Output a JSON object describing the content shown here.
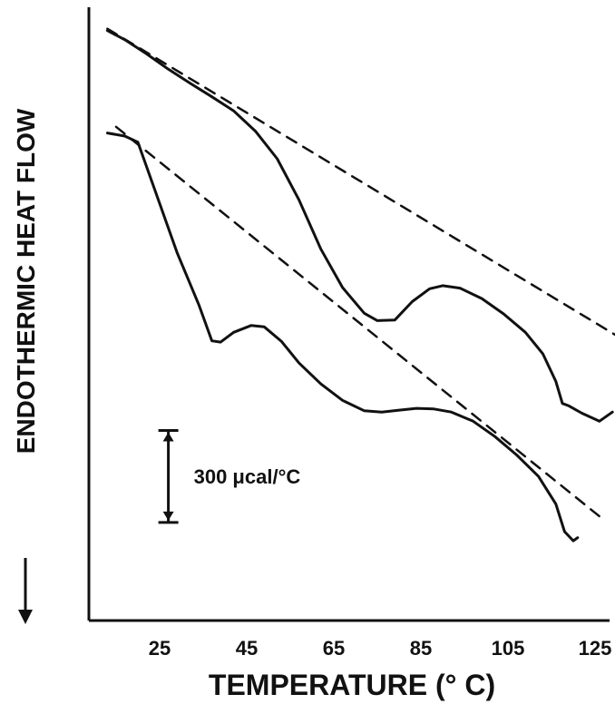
{
  "chart_data": {
    "type": "line",
    "title": "",
    "xlabel": "TEMPERATURE (° C)",
    "ylabel": "ENDOTHERMIC HEAT FLOW",
    "ylabel_arrow": "↓",
    "xlim": [
      13,
      131
    ],
    "x_ticks": [
      25,
      45,
      65,
      85,
      105,
      125
    ],
    "x_tick_labels": [
      "25",
      "45",
      "65",
      "85",
      "105",
      "125"
    ],
    "y_units": "relative heat flow (μcal/°C)",
    "ylim": [
      0,
      2000
    ],
    "grid": false,
    "scale_bar": {
      "label": "300 μcal/°C",
      "value": 300,
      "x": 27,
      "y_top": 620,
      "y_bottom": 320
    },
    "series": [
      {
        "style": "solid",
        "points": [
          [
            13,
            1924
          ],
          [
            17,
            1894
          ],
          [
            22,
            1848
          ],
          [
            27,
            1798
          ],
          [
            32,
            1752
          ],
          [
            37,
            1708
          ],
          [
            42,
            1662
          ],
          [
            47,
            1596
          ],
          [
            52,
            1506
          ],
          [
            57,
            1372
          ],
          [
            62,
            1212
          ],
          [
            67,
            1086
          ],
          [
            72,
            1002
          ],
          [
            75,
            978
          ],
          [
            79,
            980
          ],
          [
            83,
            1040
          ],
          [
            87,
            1082
          ],
          [
            90,
            1092
          ],
          [
            94,
            1084
          ],
          [
            99,
            1050
          ],
          [
            104,
            1000
          ],
          [
            109,
            940
          ],
          [
            113,
            870
          ],
          [
            116,
            780
          ],
          [
            117.5,
            708
          ],
          [
            119,
            700
          ],
          [
            122,
            676
          ],
          [
            126,
            650
          ],
          [
            129,
            680
          ]
        ]
      },
      {
        "style": "dashed",
        "points": [
          [
            13,
            1930
          ],
          [
            131,
            920
          ]
        ]
      },
      {
        "style": "solid",
        "points": [
          [
            13,
            1590
          ],
          [
            17,
            1580
          ],
          [
            20,
            1560
          ],
          [
            24,
            1400
          ],
          [
            29,
            1200
          ],
          [
            34,
            1030
          ],
          [
            37,
            912
          ],
          [
            39,
            908
          ],
          [
            42,
            940
          ],
          [
            46,
            962
          ],
          [
            49,
            958
          ],
          [
            53,
            910
          ],
          [
            57,
            840
          ],
          [
            62,
            772
          ],
          [
            67,
            718
          ],
          [
            72,
            684
          ],
          [
            76,
            680
          ],
          [
            80,
            686
          ],
          [
            84,
            692
          ],
          [
            88,
            690
          ],
          [
            92,
            680
          ],
          [
            97,
            650
          ],
          [
            102,
            600
          ],
          [
            107,
            540
          ],
          [
            112,
            470
          ],
          [
            116,
            380
          ],
          [
            118,
            290
          ],
          [
            120,
            260
          ],
          [
            121,
            270
          ]
        ]
      },
      {
        "style": "dashed",
        "points": [
          [
            15,
            1610
          ],
          [
            126,
            340
          ]
        ]
      }
    ]
  }
}
